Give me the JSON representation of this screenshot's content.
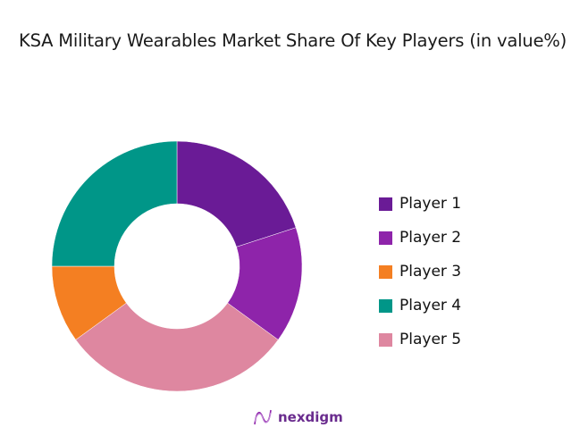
{
  "title": "KSA Military Wearables Market Share Of Key Players (in value%)",
  "chart_data": {
    "type": "pie",
    "variant": "donut",
    "title": "KSA Military Wearables Market Share Of Key Players (in value%)",
    "categories": [
      "Player 1",
      "Player 2",
      "Player 3",
      "Player 4",
      "Player 5"
    ],
    "values": [
      20,
      15,
      10,
      25,
      30
    ],
    "slice_order_clockwise_from_top": [
      "Player 1",
      "Player 2",
      "Player 5",
      "Player 3",
      "Player 4"
    ],
    "colors": {
      "Player 1": "#6a1b96",
      "Player 2": "#8e24aa",
      "Player 3": "#f47f22",
      "Player 4": "#009688",
      "Player 5": "#de87a0"
    },
    "legend_position": "right",
    "data_labels": false
  },
  "legend": [
    {
      "label": "Player 1",
      "color": "#6a1b96"
    },
    {
      "label": "Player 2",
      "color": "#8e24aa"
    },
    {
      "label": "Player 3",
      "color": "#f47f22"
    },
    {
      "label": "Player 4",
      "color": "#009688"
    },
    {
      "label": "Player 5",
      "color": "#de87a0"
    }
  ],
  "logo": {
    "text": "nexdigm"
  }
}
